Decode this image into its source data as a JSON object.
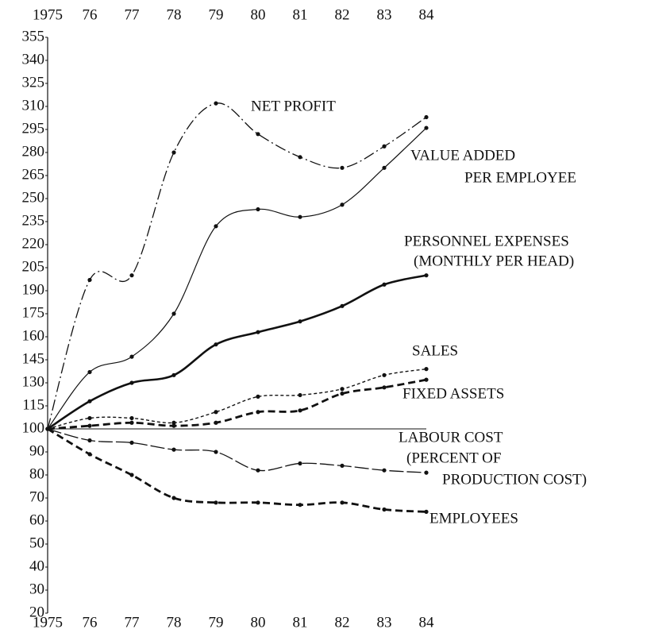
{
  "chart_data": {
    "type": "line",
    "categories": [
      "1975",
      "76",
      "77",
      "78",
      "79",
      "80",
      "81",
      "82",
      "83",
      "84"
    ],
    "yticks": [
      20,
      30,
      40,
      50,
      60,
      70,
      80,
      90,
      100,
      115,
      130,
      145,
      160,
      175,
      190,
      205,
      220,
      235,
      250,
      265,
      280,
      295,
      310,
      325,
      340,
      355
    ],
    "ylim": [
      20,
      355
    ],
    "series": [
      {
        "name": [
          "NET PROFIT"
        ],
        "color": "#111",
        "style": "dashdot",
        "values": [
          100,
          197,
          200,
          280,
          312,
          292,
          277,
          270,
          284,
          303
        ]
      },
      {
        "name": [
          "VALUE ADDED",
          "PER EMPLOYEE"
        ],
        "color": "#111",
        "style": "thin",
        "values": [
          100,
          137,
          147,
          175,
          232,
          243,
          238,
          246,
          270,
          296
        ]
      },
      {
        "name": [
          "PERSONNEL EXPENSES",
          "(MONTHLY PER HEAD)"
        ],
        "color": "#111",
        "style": "thick",
        "values": [
          100,
          118,
          130,
          135,
          155,
          163,
          170,
          180,
          194,
          200
        ]
      },
      {
        "name": [
          "SALES"
        ],
        "color": "#111",
        "style": "dotted",
        "values": [
          100,
          107,
          107,
          104,
          111,
          121,
          122,
          126,
          135,
          139
        ]
      },
      {
        "name": [
          "FIXED ASSETS"
        ],
        "color": "#111",
        "style": "thickdash",
        "values": [
          100,
          102,
          104,
          102,
          104,
          111,
          112,
          123,
          127,
          132
        ]
      },
      {
        "name": [
          "LABOUR COST",
          "(PERCENT OF",
          "PRODUCTION COST)"
        ],
        "color": "#111",
        "style": "longdash",
        "values": [
          100,
          95,
          94,
          91,
          90,
          82,
          85,
          84,
          82,
          81
        ]
      },
      {
        "name": [
          "EMPLOYEES"
        ],
        "color": "#111",
        "style": "thickdash",
        "values": [
          100,
          89,
          80,
          70,
          68,
          68,
          67,
          68,
          65,
          64
        ]
      }
    ]
  }
}
